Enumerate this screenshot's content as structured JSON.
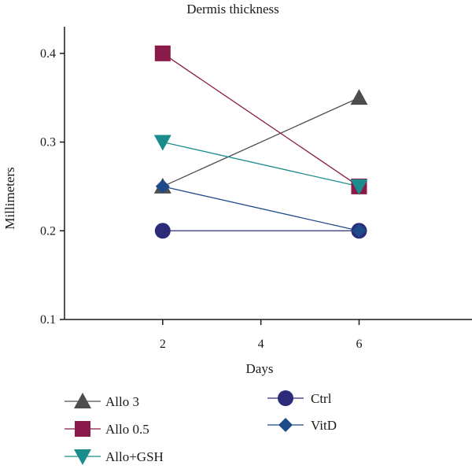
{
  "chart_data": {
    "type": "line",
    "title": "Dermis thickness",
    "xlabel": "Days",
    "ylabel": "Millimeters",
    "x": [
      2,
      6
    ],
    "xticks": [
      2,
      4,
      6
    ],
    "yticks": [
      0.1,
      0.2,
      0.3,
      0.4
    ],
    "xlim": [
      0,
      8.3
    ],
    "ylim": [
      0.1,
      0.43
    ],
    "grid": false,
    "legend_position": "bottom",
    "series": [
      {
        "name": "Allo 3",
        "values": [
          0.25,
          0.35
        ],
        "color": "#4d4d4d",
        "marker": "triangle-up"
      },
      {
        "name": "Allo 0.5",
        "values": [
          0.4,
          0.25
        ],
        "color": "#8a1a4a",
        "marker": "square"
      },
      {
        "name": "Allo+GSH",
        "values": [
          0.3,
          0.25
        ],
        "color": "#1b8c8c",
        "marker": "triangle-down"
      },
      {
        "name": "Ctrl",
        "values": [
          0.2,
          0.2
        ],
        "color": "#2b2b7a",
        "marker": "circle"
      },
      {
        "name": "VitD",
        "values": [
          0.25,
          0.2
        ],
        "color": "#1f4a8a",
        "marker": "diamond"
      }
    ]
  }
}
